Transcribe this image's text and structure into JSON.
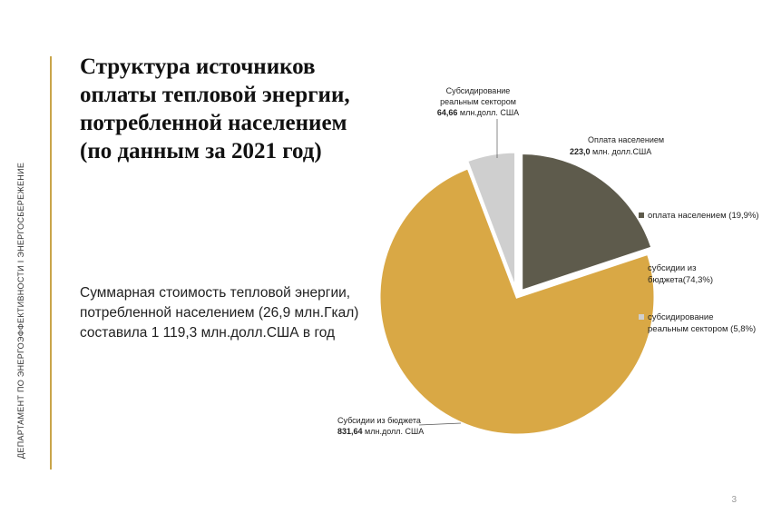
{
  "sidebar": {
    "text": "ДЕПАРТАМЕНТ ПО ЭНЕРГОЭФФЕКТИВНОСТИ І ЭНЕРГОСБЕРЕЖЕНИЕ"
  },
  "title_lines": [
    "Структура источников",
    "оплаты тепловой энергии,",
    "потребленной  населением",
    "(по данным за 2021 год)"
  ],
  "summary_lines": [
    "Суммарная стоимость тепловой энергии,",
    "потребленной населением (26,9 млн.Гкал)",
    "составила 1 119,3 млн.долл.США в год"
  ],
  "page_number": "3",
  "chart_data": {
    "type": "pie",
    "categories": [
      "оплата населением",
      "субсидии из бюджета",
      "субсидирование реальным сектором"
    ],
    "values": [
      223.0,
      831.64,
      64.66
    ],
    "percents": [
      19.9,
      74.3,
      5.8
    ],
    "colors": [
      "#5e5b4c",
      "#d9a845",
      "#cfcfcf"
    ],
    "legend_position": "right",
    "legend": [
      {
        "lines": [
          "оплата населением (19,9%)"
        ]
      },
      {
        "lines": [
          "субсидии из",
          "бюджета(74,3%)"
        ]
      },
      {
        "lines": [
          "субсидирование",
          "реальным сектором (5,8%)"
        ]
      }
    ],
    "callouts": [
      {
        "label": "Оплата населением",
        "value": "223,0",
        "unit": " млн. долл.США"
      },
      {
        "label": "Субсидии из бюджета",
        "value": "831,64",
        "unit": " млн.долл. США"
      },
      {
        "label": "Субсидирование\nреальным сектором",
        "value": "64,66",
        "unit": " млн.долл. США"
      }
    ]
  }
}
